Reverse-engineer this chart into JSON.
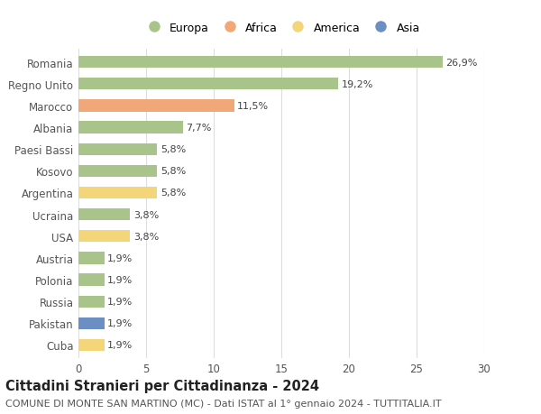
{
  "categories": [
    "Cuba",
    "Pakistan",
    "Russia",
    "Polonia",
    "Austria",
    "USA",
    "Ucraina",
    "Argentina",
    "Kosovo",
    "Paesi Bassi",
    "Albania",
    "Marocco",
    "Regno Unito",
    "Romania"
  ],
  "values": [
    1.9,
    1.9,
    1.9,
    1.9,
    1.9,
    3.8,
    3.8,
    5.8,
    5.8,
    5.8,
    7.7,
    11.5,
    19.2,
    26.9
  ],
  "colors": [
    "#f5d57a",
    "#6b8fc2",
    "#a8c48a",
    "#a8c48a",
    "#a8c48a",
    "#f5d57a",
    "#a8c48a",
    "#f5d57a",
    "#a8c48a",
    "#a8c48a",
    "#a8c48a",
    "#f0a878",
    "#a8c48a",
    "#a8c48a"
  ],
  "labels": [
    "1,9%",
    "1,9%",
    "1,9%",
    "1,9%",
    "1,9%",
    "3,8%",
    "3,8%",
    "5,8%",
    "5,8%",
    "5,8%",
    "7,7%",
    "11,5%",
    "19,2%",
    "26,9%"
  ],
  "legend": [
    {
      "label": "Europa",
      "color": "#a8c48a"
    },
    {
      "label": "Africa",
      "color": "#f0a878"
    },
    {
      "label": "America",
      "color": "#f5d57a"
    },
    {
      "label": "Asia",
      "color": "#6b8fc2"
    }
  ],
  "title": "Cittadini Stranieri per Cittadinanza - 2024",
  "subtitle": "COMUNE DI MONTE SAN MARTINO (MC) - Dati ISTAT al 1° gennaio 2024 - TUTTITALIA.IT",
  "xlim": [
    0,
    30
  ],
  "xticks": [
    0,
    5,
    10,
    15,
    20,
    25,
    30
  ],
  "background_color": "#ffffff",
  "grid_color": "#dddddd",
  "bar_height": 0.55,
  "label_fontsize": 8,
  "ytick_fontsize": 8.5,
  "xtick_fontsize": 8.5,
  "title_fontsize": 10.5,
  "subtitle_fontsize": 8
}
